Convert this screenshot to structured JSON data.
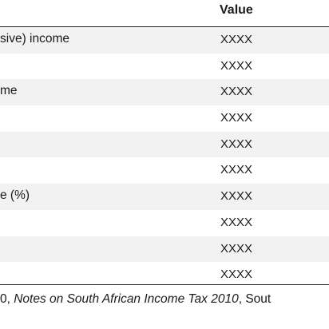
{
  "table": {
    "header": {
      "value": "Value"
    },
    "rows": [
      {
        "label": "sive) income",
        "value": "XXXX"
      },
      {
        "label": "",
        "value": "XXXX"
      },
      {
        "label": "me",
        "value": "XXXX"
      },
      {
        "label": "",
        "value": "XXXX"
      },
      {
        "label": "",
        "value": "XXXX"
      },
      {
        "label": "",
        "value": "XXXX"
      },
      {
        "label": "e (%)",
        "value": "XXXX"
      },
      {
        "label": "",
        "value": "XXXX"
      },
      {
        "label": "",
        "value": "XXXX"
      },
      {
        "label": "",
        "value": "XXXX"
      }
    ]
  },
  "source": {
    "prefix": "0, ",
    "title": "Notes on South African Income Tax 2010",
    "suffix": ", Sout"
  }
}
